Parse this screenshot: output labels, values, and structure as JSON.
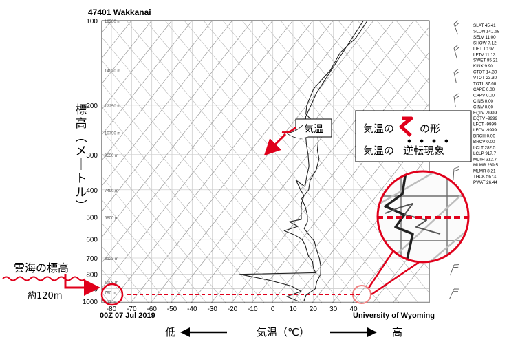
{
  "chart_data": {
    "type": "line",
    "title": "47401  Wakkanai",
    "time_label": "00Z 07 Jul 2019",
    "source_label": "University of Wyoming",
    "x_ticks": [
      -80,
      -70,
      -60,
      -50,
      -40,
      -30,
      -20,
      -10,
      0,
      10,
      20,
      30,
      40
    ],
    "xlim": [
      -80,
      45
    ],
    "y_scale": "log",
    "y_ticks": [
      100,
      200,
      300,
      400,
      500,
      600,
      700,
      800,
      900,
      1000
    ],
    "ylim": [
      100,
      1010
    ],
    "height_labels": [
      {
        "p": 100,
        "label": "16580 m"
      },
      {
        "p": 150,
        "label": "14020 m"
      },
      {
        "p": 200,
        "label": "12250 m"
      },
      {
        "p": 250,
        "label": "10790 m"
      },
      {
        "p": 300,
        "label": "9550 m"
      },
      {
        "p": 400,
        "label": "7490 m"
      },
      {
        "p": 500,
        "label": "5800 m"
      },
      {
        "p": 700,
        "label": "3123 m"
      },
      {
        "p": 850,
        "label": "1509 m"
      },
      {
        "p": 925,
        "label": "790 m"
      },
      {
        "p": 1000,
        "label": "127 m"
      }
    ],
    "series": [
      {
        "color": "#222222",
        "points": [
          [
            -63,
            100
          ],
          [
            -62,
            115
          ],
          [
            -64,
            130
          ],
          [
            -62,
            150
          ],
          [
            -63,
            175
          ],
          [
            -60,
            200
          ],
          [
            -57,
            215
          ],
          [
            -50,
            230
          ],
          [
            -44,
            250
          ],
          [
            -40,
            270
          ],
          [
            -37,
            290
          ],
          [
            -33,
            310
          ],
          [
            -30,
            340
          ],
          [
            -29,
            370
          ],
          [
            -26,
            400
          ],
          [
            -26,
            430
          ],
          [
            -21,
            460
          ],
          [
            -17,
            490
          ],
          [
            -14,
            520
          ],
          [
            -13,
            550
          ],
          [
            -8,
            580
          ],
          [
            -3,
            610
          ],
          [
            0,
            640
          ],
          [
            3,
            670
          ],
          [
            6,
            700
          ],
          [
            10,
            750
          ],
          [
            13,
            800
          ],
          [
            14,
            850
          ],
          [
            16,
            900
          ],
          [
            14,
            950
          ],
          [
            15,
            990
          ],
          [
            16,
            1000
          ]
        ]
      },
      {
        "color": "#222222",
        "points": [
          [
            -65,
            100
          ],
          [
            -60,
            180
          ],
          [
            -56,
            220
          ],
          [
            -50,
            250
          ],
          [
            -45,
            275
          ],
          [
            -40,
            300
          ],
          [
            -35,
            330
          ],
          [
            -32,
            360
          ],
          [
            -29,
            390
          ],
          [
            -36,
            370
          ],
          [
            -30,
            400
          ],
          [
            -26,
            420
          ],
          [
            -24,
            450
          ],
          [
            -21,
            480
          ],
          [
            -18,
            510
          ],
          [
            -23,
            520
          ],
          [
            -17,
            540
          ],
          [
            -22,
            560
          ],
          [
            -15,
            580
          ],
          [
            -10,
            600
          ],
          [
            -6,
            630
          ],
          [
            -3,
            660
          ],
          [
            0,
            690
          ],
          [
            4,
            720
          ],
          [
            7,
            760
          ],
          [
            10,
            790
          ],
          [
            -27,
            800
          ],
          [
            -10,
            840
          ],
          [
            3,
            880
          ],
          [
            10,
            920
          ],
          [
            5,
            960
          ],
          [
            13,
            1000
          ]
        ]
      }
    ],
    "wind_barbs": 12,
    "stability_indices": [
      "SLAT  45.41",
      "SLON  141.68",
      "SELV  11.00",
      "SHOW  7.12",
      "LIFT  10.97",
      "LFTV  11.13",
      "SWET  85.21",
      "KINX  9.90",
      "CTOT  14.30",
      "VTOT  23.30",
      "TOTL  37.60",
      "CAPE  0.00",
      "CAPV  0.00",
      "CINS  0.00",
      "CINV  0.00",
      "EQLV  -9999",
      "EQTV  -9999",
      "LFCT  -9999",
      "LFCV  -9999",
      "BRCH  0.00",
      "BRCV  0.00",
      "LCLT  282.5",
      "LCLP  917.7",
      "MLTH  312.7",
      "MLMR  289.5",
      "MLMR  8.21",
      "THCK  5673.",
      "PWAT  26.44"
    ]
  },
  "annotations": {
    "y_axis_jp": "標高（メートル）",
    "temp_callout": "気温",
    "legend_line1_prefix": "気温の",
    "legend_line1_suffix": "の形",
    "legend_line2_prefix": "気温の",
    "legend_line2_emphasis": "逆転現象",
    "sea_of_clouds": "雲海の標高",
    "approx_height": "約120m",
    "low": "低",
    "high": "高",
    "x_caption": "気温（℃）"
  },
  "colors": {
    "accent_red": "#e0001b",
    "isotherm": "#9a9a9a",
    "grid": "#cfcfcf",
    "sounding": "#222222",
    "magnifier_grid": "#6e6e6e"
  }
}
